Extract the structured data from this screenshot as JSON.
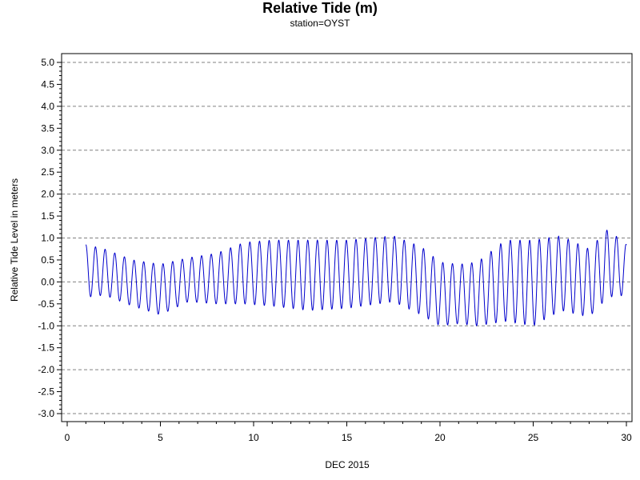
{
  "chart_data": {
    "type": "line",
    "title": "Relative Tide (m)",
    "subtitle": "station=OYST",
    "xlabel": "DEC 2015",
    "ylabel": "Relative Tide Level in meters",
    "xlim": [
      0,
      30
    ],
    "ylim": [
      -3.0,
      5.0
    ],
    "x_ticks": [
      0,
      5,
      10,
      15,
      20,
      25,
      30
    ],
    "y_ticks": [
      "5.0",
      "4.5",
      "4.0",
      "3.5",
      "3.0",
      "2.5",
      "2.0",
      "1.5",
      "1.0",
      "0.5",
      "0.0",
      "-0.5",
      "-1.0",
      "-1.5",
      "-2.0",
      "-2.5",
      "-3.0"
    ],
    "grid": "horizontal dashed at integer values",
    "series": [
      {
        "color": "#0000cc",
        "cycles_per_day": 1.932,
        "x_start": 1.0,
        "x_end": 30.0,
        "first_value": 0.85,
        "high_envelope": [
          [
            1.0,
            0.85
          ],
          [
            2.0,
            0.75
          ],
          [
            3.5,
            0.5
          ],
          [
            5.0,
            0.4
          ],
          [
            6.5,
            0.55
          ],
          [
            8.0,
            0.65
          ],
          [
            9.5,
            0.9
          ],
          [
            11.0,
            0.95
          ],
          [
            13.0,
            0.95
          ],
          [
            15.0,
            0.95
          ],
          [
            17.5,
            1.05
          ],
          [
            19.0,
            0.8
          ],
          [
            20.0,
            0.45
          ],
          [
            21.0,
            0.4
          ],
          [
            22.0,
            0.45
          ],
          [
            23.5,
            0.95
          ],
          [
            25.0,
            0.95
          ],
          [
            26.5,
            1.05
          ],
          [
            28.0,
            0.75
          ],
          [
            29.0,
            1.2
          ],
          [
            30.0,
            0.85
          ]
        ],
        "low_envelope": [
          [
            1.0,
            -0.35
          ],
          [
            2.0,
            -0.3
          ],
          [
            3.5,
            -0.55
          ],
          [
            5.0,
            -0.75
          ],
          [
            6.5,
            -0.45
          ],
          [
            8.0,
            -0.5
          ],
          [
            9.5,
            -0.5
          ],
          [
            11.0,
            -0.55
          ],
          [
            13.0,
            -0.65
          ],
          [
            15.0,
            -0.6
          ],
          [
            17.5,
            -0.45
          ],
          [
            19.0,
            -0.75
          ],
          [
            20.0,
            -1.0
          ],
          [
            21.0,
            -0.95
          ],
          [
            22.0,
            -1.0
          ],
          [
            23.5,
            -0.9
          ],
          [
            25.0,
            -1.0
          ],
          [
            26.5,
            -0.65
          ],
          [
            28.0,
            -0.8
          ],
          [
            29.0,
            -0.35
          ],
          [
            30.0,
            -0.3
          ]
        ]
      }
    ]
  }
}
